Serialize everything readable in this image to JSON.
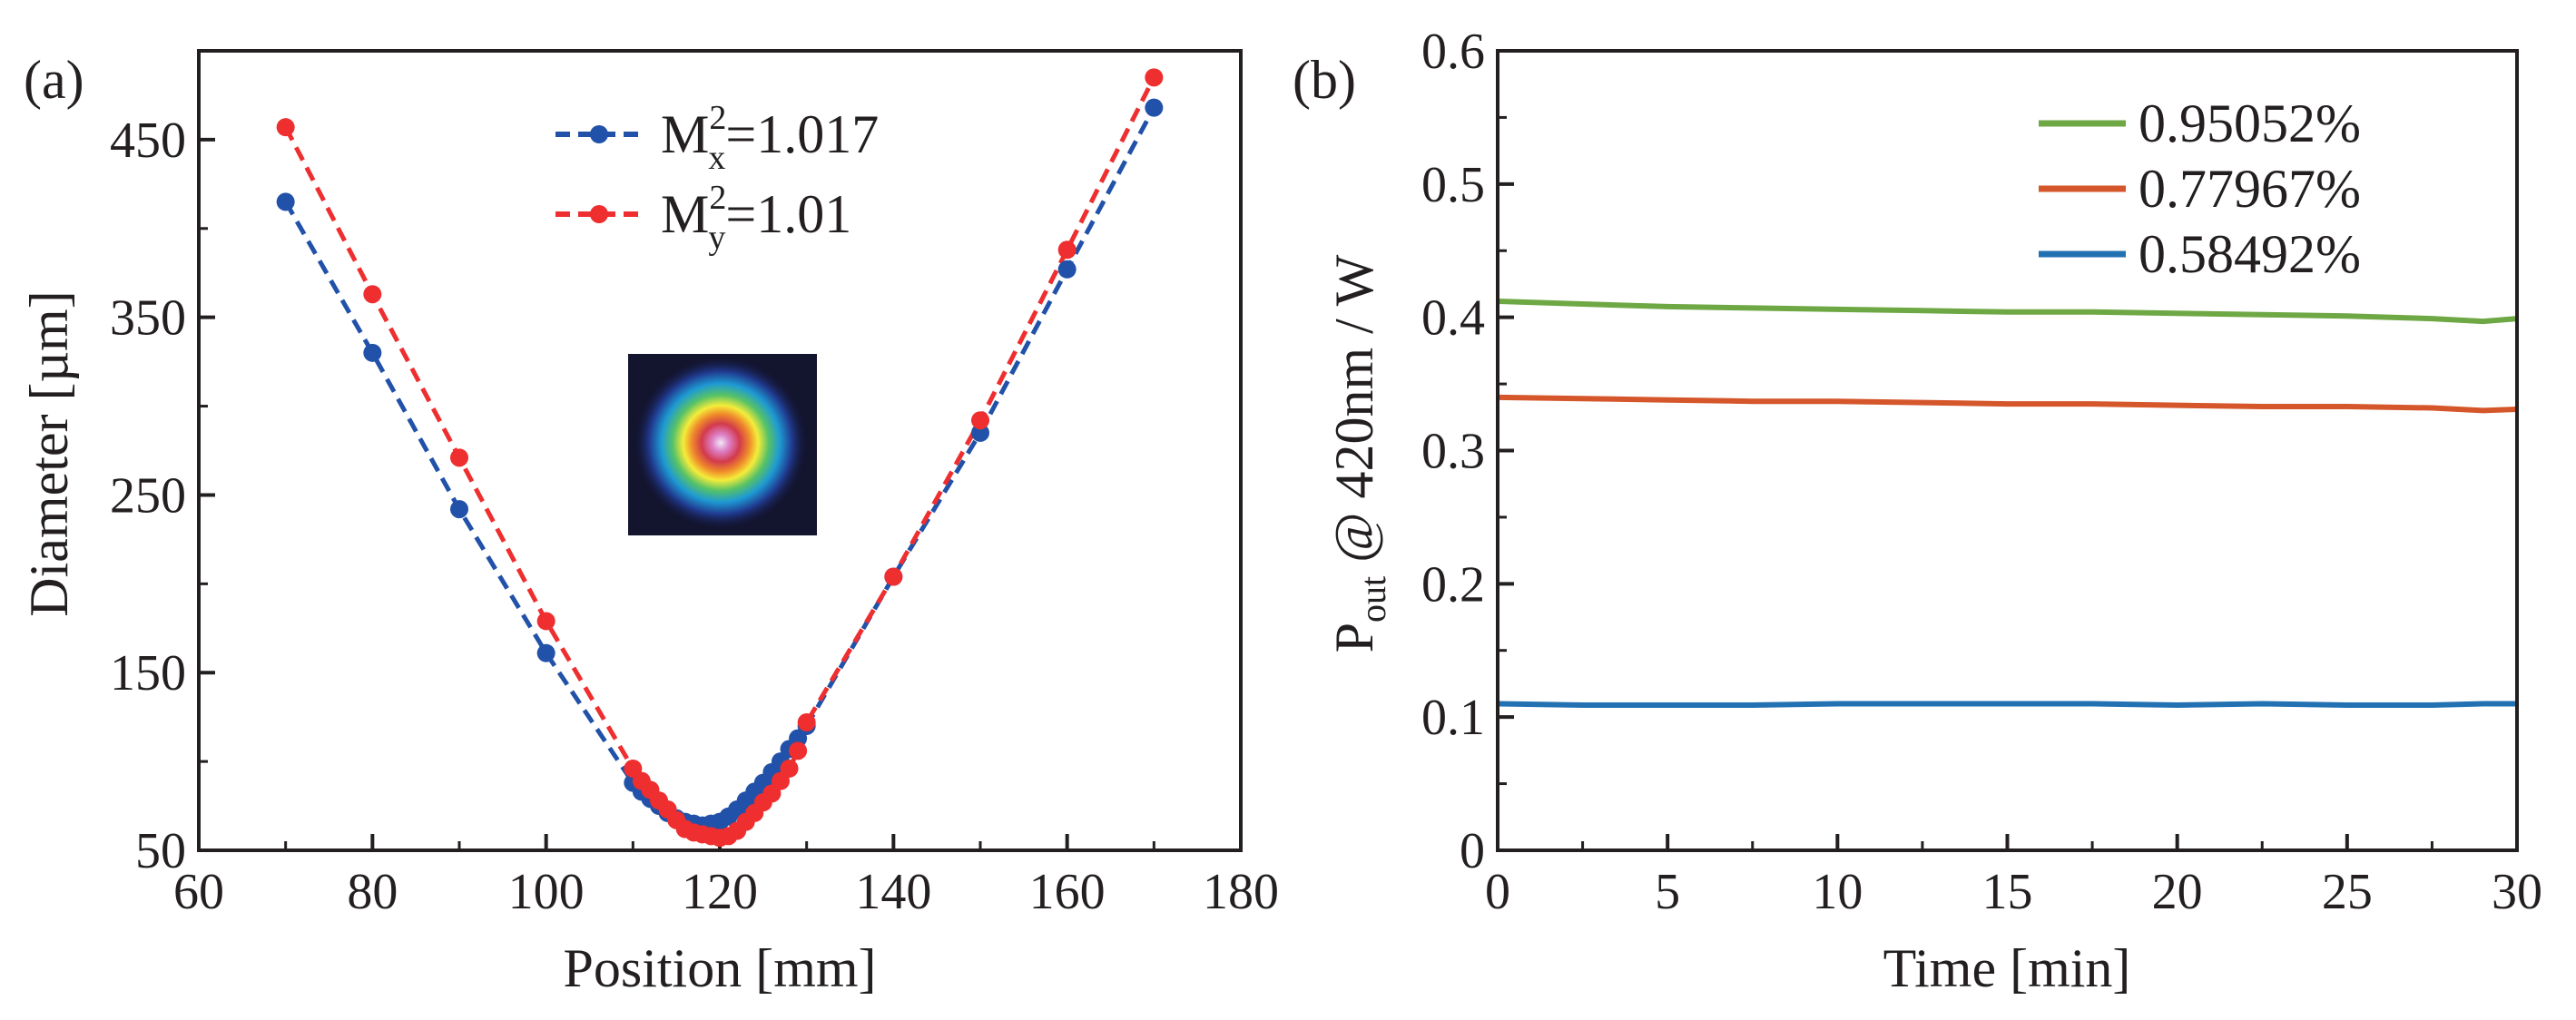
{
  "figure": {
    "panel_a_label": "(a)",
    "panel_b_label": "(b)"
  },
  "chart_data": [
    {
      "type": "scatter",
      "title": "",
      "xlabel": "Position [mm]",
      "ylabel": "Diameter [µm]",
      "xlim": [
        60,
        180
      ],
      "ylim": [
        50,
        500
      ],
      "x_ticks": [
        60,
        80,
        100,
        120,
        140,
        160,
        180
      ],
      "y_ticks": [
        50,
        150,
        250,
        350,
        450
      ],
      "x_tick_labels": [
        "60",
        "80",
        "100",
        "120",
        "140",
        "160",
        "180"
      ],
      "y_tick_labels": [
        "50",
        "150",
        "250",
        "350",
        "450"
      ],
      "grid": false,
      "legend_position": "top-center",
      "series": [
        {
          "name": "M²x=1.017",
          "legend_label": {
            "base": "M",
            "sup": "2",
            "sub": "x",
            "value": "=1.017"
          },
          "color": "#2151a8",
          "line_style": "dashed",
          "marker": "circle",
          "x": [
            70,
            80,
            90,
            100,
            110,
            111,
            112,
            113,
            114,
            115,
            116,
            117,
            118,
            119,
            120,
            121,
            122,
            123,
            124,
            125,
            126,
            127,
            128,
            129,
            130,
            140,
            150,
            160,
            170
          ],
          "y": [
            415,
            330,
            242,
            161,
            88,
            83,
            79,
            75,
            71,
            68,
            66,
            65,
            64,
            65,
            66,
            69,
            73,
            78,
            83,
            88,
            94,
            100,
            107,
            113,
            120,
            204,
            285,
            377,
            468
          ]
        },
        {
          "name": "M²y=1.01",
          "legend_label": {
            "base": "M",
            "sup": "2",
            "sub": "y",
            "value": "=1.01"
          },
          "color": "#ee2e2f",
          "line_style": "dashed",
          "marker": "circle",
          "x": [
            70,
            80,
            90,
            100,
            110,
            111,
            112,
            113,
            114,
            115,
            116,
            117,
            118,
            119,
            120,
            121,
            122,
            123,
            124,
            125,
            126,
            127,
            128,
            129,
            130,
            140,
            150,
            160,
            170
          ],
          "y": [
            457,
            363,
            271,
            179,
            96,
            89,
            84,
            78,
            73,
            67,
            62,
            60,
            59,
            58,
            57,
            58,
            61,
            66,
            71,
            77,
            82,
            89,
            96,
            106,
            122,
            204,
            292,
            388,
            485
          ]
        }
      ],
      "inset": "beam-profile-image"
    },
    {
      "type": "line",
      "title": "",
      "xlabel": "Time [min]",
      "ylabel": "P_out @ 420nm / W",
      "ylabel_parts": {
        "base": "P",
        "sub": "out",
        "rest": " @ 420nm / W"
      },
      "xlim": [
        0,
        30
      ],
      "ylim": [
        0,
        0.6
      ],
      "x_ticks": [
        0,
        5,
        10,
        15,
        20,
        25,
        30
      ],
      "y_ticks": [
        0,
        0.1,
        0.2,
        0.3,
        0.4,
        0.5,
        0.6
      ],
      "x_tick_labels": [
        "0",
        "5",
        "10",
        "15",
        "20",
        "25",
        "30"
      ],
      "y_tick_labels": [
        "0",
        "0.1",
        "0.2",
        "0.3",
        "0.4",
        "0.5",
        "0.6"
      ],
      "grid": false,
      "legend_position": "top-right",
      "series": [
        {
          "name": "0.95052%",
          "color": "#6ea844",
          "x": [
            0,
            2.5,
            5,
            7.5,
            10,
            12.5,
            15,
            17.5,
            20,
            22.5,
            25,
            27.5,
            29,
            30
          ],
          "y": [
            0.412,
            0.41,
            0.408,
            0.407,
            0.406,
            0.405,
            0.404,
            0.404,
            0.403,
            0.402,
            0.401,
            0.399,
            0.397,
            0.399
          ]
        },
        {
          "name": "0.77967%",
          "color": "#d4562a",
          "x": [
            0,
            2.5,
            5,
            7.5,
            10,
            12.5,
            15,
            17.5,
            20,
            22.5,
            25,
            27.5,
            29,
            30
          ],
          "y": [
            0.34,
            0.339,
            0.338,
            0.337,
            0.337,
            0.336,
            0.335,
            0.335,
            0.334,
            0.333,
            0.333,
            0.332,
            0.33,
            0.331
          ]
        },
        {
          "name": "0.58492%",
          "color": "#2271b3",
          "x": [
            0,
            2.5,
            5,
            7.5,
            10,
            12.5,
            15,
            17.5,
            20,
            22.5,
            25,
            27.5,
            29,
            30
          ],
          "y": [
            0.11,
            0.109,
            0.109,
            0.109,
            0.11,
            0.11,
            0.11,
            0.11,
            0.109,
            0.11,
            0.109,
            0.109,
            0.11,
            0.11
          ]
        }
      ]
    }
  ]
}
